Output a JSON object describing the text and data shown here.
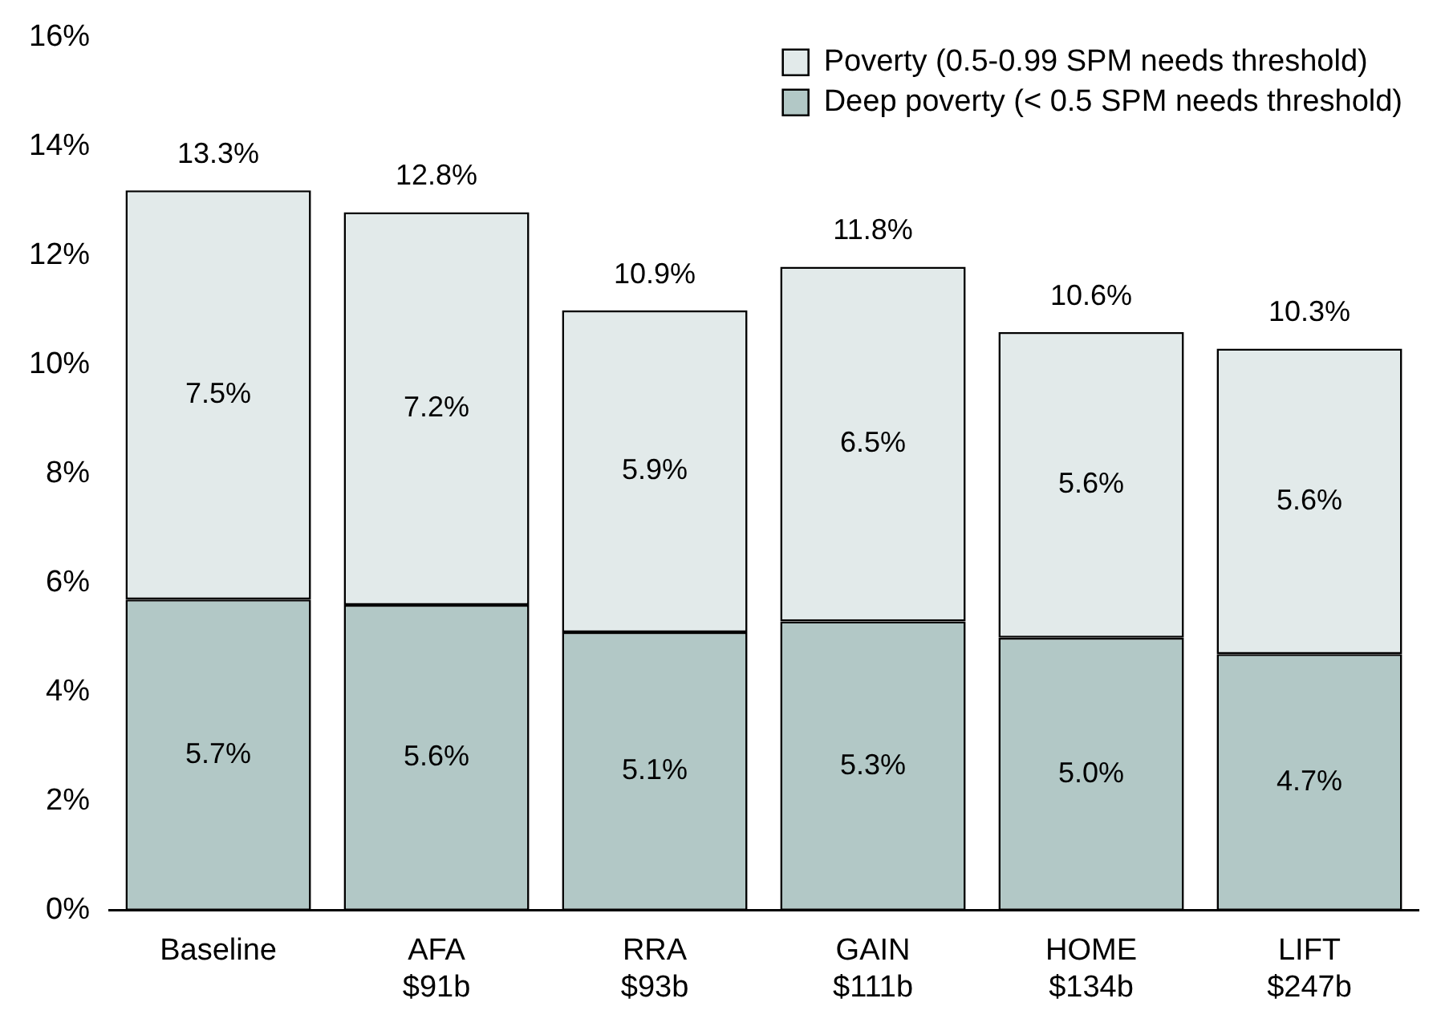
{
  "chart_data": {
    "type": "bar",
    "stacked": true,
    "categories": [
      "Baseline",
      "AFA\n$91b",
      "RRA\n$93b",
      "GAIN\n$111b",
      "HOME\n$134b",
      "LIFT\n$247b"
    ],
    "series": [
      {
        "name": "Deep poverty (< 0.5 SPM needs threshold)",
        "color": "#b2c8c6",
        "values": [
          5.7,
          5.6,
          5.1,
          5.3,
          5.0,
          4.7
        ],
        "value_labels": [
          "5.7%",
          "5.6%",
          "5.1%",
          "5.3%",
          "5.0%",
          "4.7%"
        ]
      },
      {
        "name": "Poverty (0.5-0.99 SPM needs threshold)",
        "color": "#e2eaea",
        "values": [
          7.5,
          7.2,
          5.9,
          6.5,
          5.6,
          5.6
        ],
        "value_labels": [
          "7.5%",
          "7.2%",
          "5.9%",
          "6.5%",
          "5.6%",
          "5.6%"
        ]
      }
    ],
    "totals": [
      "13.3%",
      "12.8%",
      "10.9%",
      "11.8%",
      "10.6%",
      "10.3%"
    ],
    "ylim": [
      0,
      16
    ],
    "yticks": [
      {
        "value": 0,
        "label": "0%"
      },
      {
        "value": 2,
        "label": "2%"
      },
      {
        "value": 4,
        "label": "4%"
      },
      {
        "value": 6,
        "label": "6%"
      },
      {
        "value": 8,
        "label": "8%"
      },
      {
        "value": 10,
        "label": "10%"
      },
      {
        "value": 12,
        "label": "12%"
      },
      {
        "value": 14,
        "label": "14%"
      },
      {
        "value": 16,
        "label": "16%"
      }
    ],
    "grid": false,
    "legend": "top right"
  }
}
